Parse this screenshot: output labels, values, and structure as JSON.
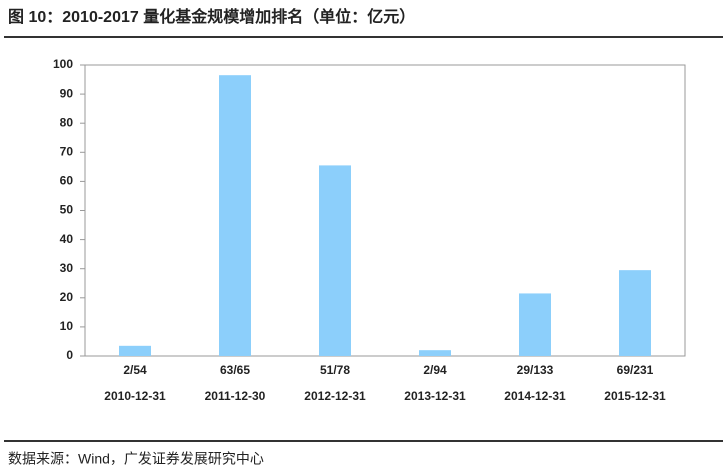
{
  "chart_data": {
    "type": "bar",
    "title": "图 10：2010-2017 量化基金规模增加排名（单位：亿元）",
    "categories": [
      "2010-12-31",
      "2011-12-30",
      "2012-12-31",
      "2013-12-31",
      "2014-12-31",
      "2015-12-31"
    ],
    "rank_labels": [
      "2/54",
      "63/65",
      "51/78",
      "2/94",
      "29/133",
      "69/231"
    ],
    "values": [
      3.5,
      96.5,
      65.5,
      2,
      21.5,
      29.5
    ],
    "color": "#8ccffb",
    "ylim": [
      0,
      100
    ],
    "yticks": [
      0,
      10,
      20,
      30,
      40,
      50,
      60,
      70,
      80,
      90,
      100
    ],
    "source": "数据来源：Wind，广发证券发展研究中心"
  }
}
